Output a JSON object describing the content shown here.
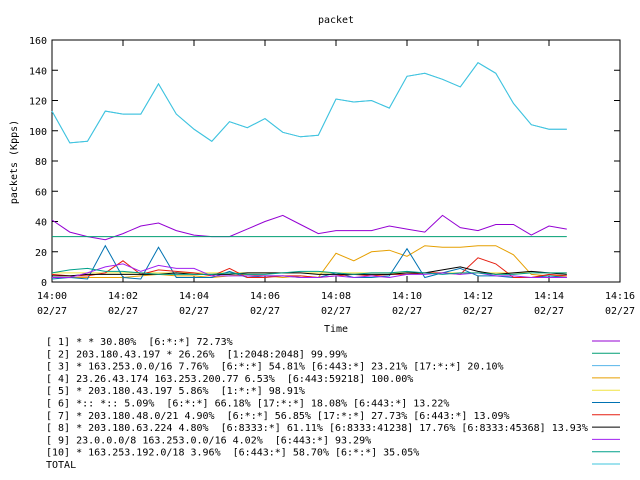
{
  "chart_data": {
    "type": "line",
    "title": "packet",
    "xlabel": "Time",
    "ylabel": "packets (Kpps)",
    "ylim": [
      0,
      160
    ],
    "yticks": [
      0,
      20,
      40,
      60,
      80,
      100,
      120,
      140,
      160
    ],
    "xticks": [
      {
        "time": "14:00",
        "date": "02/27"
      },
      {
        "time": "14:02",
        "date": "02/27"
      },
      {
        "time": "14:04",
        "date": "02/27"
      },
      {
        "time": "14:06",
        "date": "02/27"
      },
      {
        "time": "14:08",
        "date": "02/27"
      },
      {
        "time": "14:10",
        "date": "02/27"
      },
      {
        "time": "14:12",
        "date": "02/27"
      },
      {
        "time": "14:14",
        "date": "02/27"
      },
      {
        "time": "14:16",
        "date": "02/27"
      }
    ],
    "xlim": [
      "14:00",
      "14:16"
    ],
    "x": [
      "14:00:00",
      "14:00:30",
      "14:01:00",
      "14:01:30",
      "14:02:00",
      "14:02:30",
      "14:03:00",
      "14:03:30",
      "14:04:00",
      "14:04:30",
      "14:05:00",
      "14:05:30",
      "14:06:00",
      "14:06:30",
      "14:07:00",
      "14:07:30",
      "14:08:00",
      "14:08:30",
      "14:09:00",
      "14:09:30",
      "14:10:00",
      "14:10:30",
      "14:11:00",
      "14:11:30",
      "14:12:00",
      "14:12:30",
      "14:13:00",
      "14:13:30",
      "14:14:00",
      "14:14:30"
    ],
    "legend_position": "bottom",
    "series": [
      {
        "name": "[ 1] * * 30.80%  [6:*:*] 72.73%",
        "color": "#9400d3",
        "values": [
          41,
          33,
          30,
          28,
          32,
          37,
          39,
          34,
          31,
          30,
          30,
          35,
          40,
          44,
          38,
          32,
          34,
          34,
          34,
          37,
          35,
          33,
          44,
          36,
          34,
          38,
          38,
          31,
          37,
          35
        ]
      },
      {
        "name": "[ 2] 203.180.43.197 * 26.26%  [1:2048:2048] 99.99%",
        "color": "#009e73",
        "values": [
          30,
          30,
          30,
          30,
          30,
          30,
          30,
          30,
          30,
          30,
          30,
          30,
          30,
          30,
          30,
          30,
          30,
          30,
          30,
          30,
          30,
          30,
          30,
          30,
          30,
          30,
          30,
          30,
          30,
          30
        ]
      },
      {
        "name": "[ 3] * 163.253.0.0/16 7.76%  [6:*:*] 54.81% [6:443:*] 23.21% [17:*:*] 20.10%",
        "color": "#56b4e9",
        "values": [
          113,
          92,
          93,
          113,
          111,
          111,
          131,
          111,
          101,
          93,
          106,
          102,
          108,
          99,
          96,
          97,
          121,
          119,
          120,
          115,
          136,
          138,
          134,
          129,
          145,
          138,
          118,
          104,
          101,
          101
        ]
      },
      {
        "name": "[ 4] 23.26.43.174 163.253.200.77 6.53%  [6:443:59218] 100.00%",
        "color": "#e69f00",
        "values": [
          3,
          3,
          3,
          3,
          3,
          4,
          5,
          4,
          4,
          3,
          4,
          5,
          4,
          3,
          4,
          3,
          19,
          14,
          20,
          21,
          17,
          24,
          23,
          23,
          24,
          24,
          18,
          5,
          4,
          4
        ]
      },
      {
        "name": "[ 5] * 203.180.43.197 5.86%  [1:*:*] 98.91%",
        "color": "#f0e442",
        "values": [
          6,
          6,
          6,
          6,
          6,
          6,
          6,
          6,
          6,
          6,
          6,
          6,
          6,
          6,
          6,
          6,
          6,
          6,
          6,
          6,
          6,
          6,
          6,
          6,
          6,
          6,
          6,
          6,
          6,
          6
        ]
      },
      {
        "name": "[ 6] *:: *:: 5.09%  [6:*:*] 66.18% [17:*:*] 18.08% [6:443:*] 13.22%",
        "color": "#0072b2",
        "values": [
          2,
          3,
          2,
          24,
          3,
          2,
          23,
          3,
          3,
          3,
          7,
          3,
          4,
          4,
          3,
          3,
          6,
          3,
          3,
          4,
          22,
          3,
          6,
          9,
          4,
          4,
          3,
          3,
          4,
          3
        ]
      },
      {
        "name": "[ 7] * 203.180.48.0/21 4.90%  [6:*:*] 56.85% [17:*:*] 27.73% [6:443:*] 13.09%",
        "color": "#e51e10",
        "values": [
          5,
          4,
          4,
          6,
          14,
          5,
          8,
          7,
          6,
          4,
          9,
          3,
          3,
          4,
          4,
          3,
          4,
          5,
          4,
          5,
          5,
          6,
          6,
          5,
          16,
          12,
          3,
          3,
          5,
          4
        ]
      },
      {
        "name": "[ 8] * 203.180.63.224 4.80%  [6:8333:*] 61.11% [6:8333:41238] 17.76% [6:8333:45368] 13.93%",
        "color": "#000000",
        "values": [
          4,
          4,
          5,
          5,
          5,
          5,
          5,
          6,
          5,
          5,
          5,
          6,
          6,
          6,
          6,
          5,
          5,
          5,
          5,
          5,
          6,
          6,
          8,
          10,
          7,
          5,
          6,
          7,
          6,
          5
        ]
      },
      {
        "name": "[ 9] 23.0.0.0/8 163.253.0.0/16 4.02%  [6:443:*] 93.29%",
        "color": "#a020f0",
        "values": [
          3,
          3,
          6,
          10,
          12,
          7,
          11,
          9,
          9,
          4,
          4,
          4,
          4,
          4,
          3,
          3,
          4,
          3,
          4,
          3,
          5,
          5,
          6,
          5,
          6,
          4,
          4,
          3,
          3,
          3
        ]
      },
      {
        "name": "[10] * 163.253.192.0/18 3.96%  [6:443:*] 58.70% [6:*:*] 35.05%",
        "color": "#00a08a",
        "values": [
          6,
          8,
          9,
          7,
          7,
          6,
          5,
          5,
          5,
          5,
          6,
          5,
          5,
          6,
          7,
          7,
          6,
          5,
          6,
          6,
          7,
          6,
          5,
          6,
          6,
          5,
          5,
          6,
          6,
          6
        ]
      },
      {
        "name": "TOTAL",
        "color": "#3fc6de",
        "values": [
          113,
          92,
          93,
          113,
          111,
          111,
          131,
          111,
          101,
          93,
          106,
          102,
          108,
          99,
          96,
          97,
          121,
          119,
          120,
          115,
          136,
          138,
          134,
          129,
          145,
          138,
          118,
          104,
          101,
          101
        ]
      }
    ]
  }
}
